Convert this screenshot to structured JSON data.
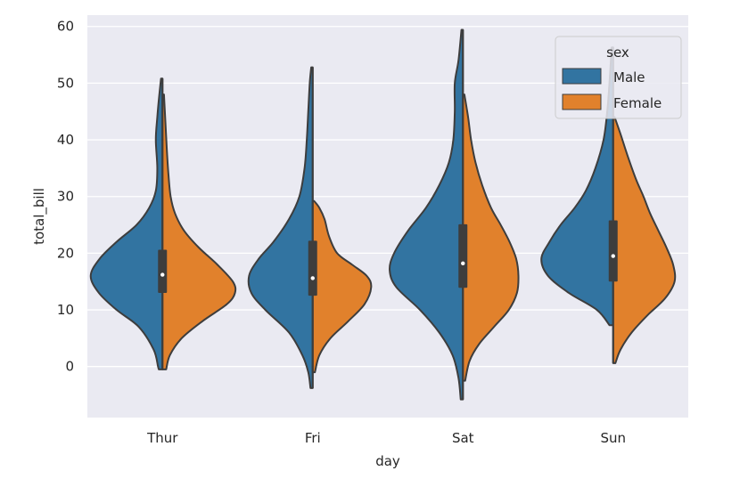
{
  "chart_data": {
    "type": "violin",
    "split": true,
    "xlabel": "day",
    "ylabel": "total_bill",
    "categories": [
      "Thur",
      "Fri",
      "Sat",
      "Sun"
    ],
    "ylim": [
      -9,
      62
    ],
    "yticks": [
      0,
      10,
      20,
      30,
      40,
      50,
      60
    ],
    "grid": true,
    "legend": {
      "title": "sex",
      "placement": "upper right"
    },
    "series": [
      {
        "name": "Male",
        "color": "#3274a1",
        "side": "left",
        "violins": [
          {
            "category": "Thur",
            "min": -0.5,
            "max": 50.8,
            "q1": 13.0,
            "median": 16.2,
            "q3": 20.6,
            "profile": [
              [
                -0.5,
                0.05
              ],
              [
                0,
                0.06
              ],
              [
                3,
                0.12
              ],
              [
                7,
                0.32
              ],
              [
                10,
                0.62
              ],
              [
                13,
                0.86
              ],
              [
                16,
                0.97
              ],
              [
                19,
                0.85
              ],
              [
                22,
                0.62
              ],
              [
                25,
                0.35
              ],
              [
                28,
                0.18
              ],
              [
                31,
                0.09
              ],
              [
                35,
                0.07
              ],
              [
                40,
                0.09
              ],
              [
                44,
                0.07
              ],
              [
                47,
                0.05
              ],
              [
                50.8,
                0.02
              ]
            ]
          },
          {
            "category": "Fri",
            "min": -3.8,
            "max": 52.8,
            "q1": 12.5,
            "median": 15.6,
            "q3": 22.2,
            "profile": [
              [
                -3.8,
                0.03
              ],
              [
                -1,
                0.06
              ],
              [
                2,
                0.14
              ],
              [
                6,
                0.32
              ],
              [
                10,
                0.64
              ],
              [
                13,
                0.83
              ],
              [
                16,
                0.86
              ],
              [
                19,
                0.73
              ],
              [
                22,
                0.53
              ],
              [
                26,
                0.32
              ],
              [
                30,
                0.18
              ],
              [
                35,
                0.11
              ],
              [
                40,
                0.08
              ],
              [
                45,
                0.06
              ],
              [
                50,
                0.04
              ],
              [
                52.8,
                0.02
              ]
            ]
          },
          {
            "category": "Sat",
            "min": -5.8,
            "max": 59.4,
            "q1": 13.9,
            "median": 18.2,
            "q3": 25.1,
            "profile": [
              [
                -5.8,
                0.03
              ],
              [
                -2,
                0.06
              ],
              [
                2,
                0.14
              ],
              [
                6,
                0.32
              ],
              [
                10,
                0.58
              ],
              [
                14,
                0.9
              ],
              [
                17,
                0.99
              ],
              [
                20,
                0.93
              ],
              [
                24,
                0.74
              ],
              [
                28,
                0.5
              ],
              [
                32,
                0.32
              ],
              [
                36,
                0.19
              ],
              [
                40,
                0.13
              ],
              [
                45,
                0.11
              ],
              [
                50,
                0.11
              ],
              [
                54,
                0.06
              ],
              [
                59.4,
                0.02
              ]
            ]
          },
          {
            "category": "Sun",
            "min": 7.3,
            "max": 56.3,
            "q1": 15.0,
            "median": 19.5,
            "q3": 25.8,
            "profile": [
              [
                7.3,
                0.05
              ],
              [
                10,
                0.22
              ],
              [
                13,
                0.6
              ],
              [
                16,
                0.88
              ],
              [
                19,
                0.97
              ],
              [
                22,
                0.86
              ],
              [
                25,
                0.71
              ],
              [
                28,
                0.52
              ],
              [
                31,
                0.37
              ],
              [
                35,
                0.24
              ],
              [
                40,
                0.13
              ],
              [
                45,
                0.08
              ],
              [
                50,
                0.05
              ],
              [
                56.3,
                0.02
              ]
            ]
          }
        ]
      },
      {
        "name": "Female",
        "color": "#e1812c",
        "side": "right",
        "violins": [
          {
            "category": "Thur",
            "min": -0.5,
            "max": 48.0,
            "q1": 13.0,
            "median": 16.2,
            "q3": 20.6,
            "profile": [
              [
                -0.5,
                0.05
              ],
              [
                2,
                0.1
              ],
              [
                5,
                0.26
              ],
              [
                8,
                0.54
              ],
              [
                11,
                0.87
              ],
              [
                13,
                0.98
              ],
              [
                15,
                0.95
              ],
              [
                18,
                0.74
              ],
              [
                21,
                0.49
              ],
              [
                24,
                0.29
              ],
              [
                27,
                0.17
              ],
              [
                30,
                0.11
              ],
              [
                34,
                0.08
              ],
              [
                38,
                0.06
              ],
              [
                43,
                0.04
              ],
              [
                48,
                0.02
              ]
            ]
          },
          {
            "category": "Fri",
            "min": -1.0,
            "max": 29.2,
            "q1": 12.5,
            "median": 15.6,
            "q3": 22.2,
            "profile": [
              [
                -1,
                0.03
              ],
              [
                2,
                0.09
              ],
              [
                5,
                0.24
              ],
              [
                8,
                0.48
              ],
              [
                11,
                0.7
              ],
              [
                14,
                0.79
              ],
              [
                16,
                0.73
              ],
              [
                18,
                0.53
              ],
              [
                20,
                0.33
              ],
              [
                23,
                0.22
              ],
              [
                26,
                0.16
              ],
              [
                28,
                0.09
              ],
              [
                29.2,
                0.02
              ]
            ]
          },
          {
            "category": "Sat",
            "min": -2.5,
            "max": 48.0,
            "q1": 13.9,
            "median": 18.2,
            "q3": 25.1,
            "profile": [
              [
                -2.5,
                0.03
              ],
              [
                1,
                0.09
              ],
              [
                4,
                0.22
              ],
              [
                7,
                0.42
              ],
              [
                10,
                0.62
              ],
              [
                13,
                0.73
              ],
              [
                16,
                0.75
              ],
              [
                19,
                0.72
              ],
              [
                22,
                0.63
              ],
              [
                25,
                0.51
              ],
              [
                28,
                0.38
              ],
              [
                32,
                0.26
              ],
              [
                36,
                0.17
              ],
              [
                40,
                0.11
              ],
              [
                44,
                0.07
              ],
              [
                48,
                0.02
              ]
            ]
          },
          {
            "category": "Sun",
            "min": 0.6,
            "max": 44.0,
            "q1": 15.0,
            "median": 19.5,
            "q3": 25.8,
            "profile": [
              [
                0.6,
                0.03
              ],
              [
                3,
                0.1
              ],
              [
                6,
                0.25
              ],
              [
                9,
                0.46
              ],
              [
                12,
                0.7
              ],
              [
                15,
                0.83
              ],
              [
                18,
                0.81
              ],
              [
                21,
                0.72
              ],
              [
                24,
                0.61
              ],
              [
                27,
                0.5
              ],
              [
                30,
                0.41
              ],
              [
                33,
                0.31
              ],
              [
                37,
                0.2
              ],
              [
                41,
                0.1
              ],
              [
                44,
                0.02
              ]
            ]
          }
        ]
      }
    ]
  }
}
